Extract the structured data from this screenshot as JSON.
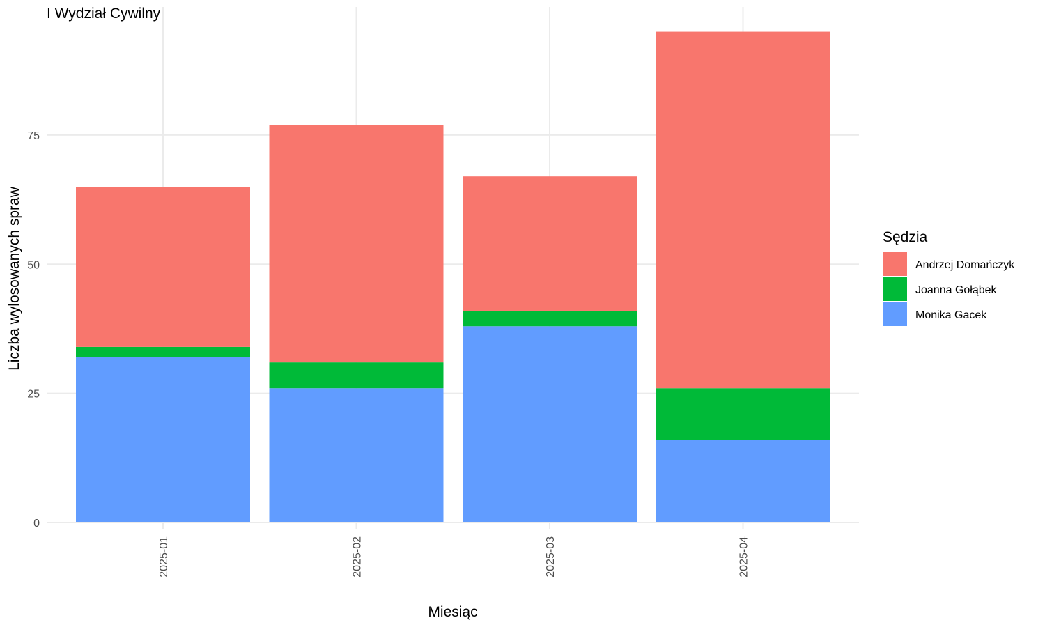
{
  "chart_data": {
    "type": "bar",
    "stacked": true,
    "title": "I Wydział Cywilny",
    "xlabel": "Miesiąc",
    "ylabel": "Liczba wylosowanych spraw",
    "categories": [
      "2025-01",
      "2025-02",
      "2025-03",
      "2025-04"
    ],
    "ylim": [
      0,
      95
    ],
    "y_ticks": [
      0,
      25,
      50,
      75
    ],
    "grid": true,
    "legend": {
      "title": "Sędzia",
      "position": "right"
    },
    "series": [
      {
        "name": "Monika Gacek",
        "color": "#619CFF",
        "values": [
          32,
          26,
          38,
          16
        ]
      },
      {
        "name": "Joanna Gołąbek",
        "color": "#00BA38",
        "values": [
          2,
          5,
          3,
          10
        ]
      },
      {
        "name": "Andrzej Domańczyk",
        "color": "#F8766D",
        "values": [
          31,
          46,
          26,
          69
        ]
      }
    ],
    "legend_order": [
      "Andrzej Domańczyk",
      "Joanna Gołąbek",
      "Monika Gacek"
    ]
  }
}
